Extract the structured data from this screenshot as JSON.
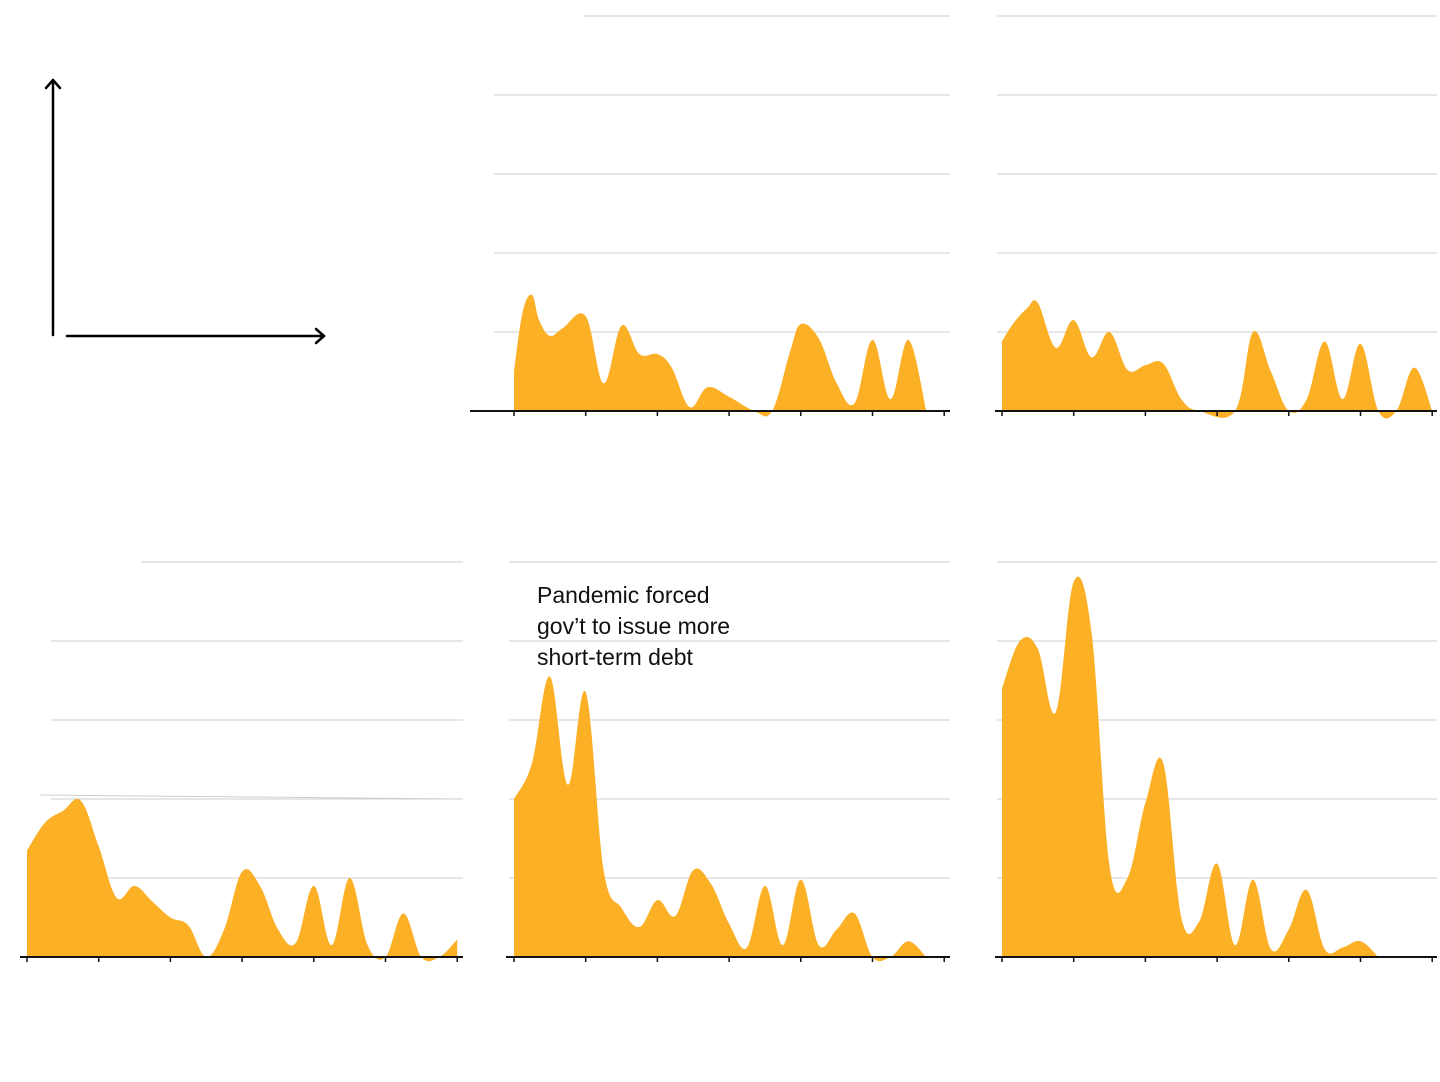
{
  "colors": {
    "area": "#fbb026",
    "grid": "#cfcfcf",
    "axis": "#111111"
  },
  "annotation": {
    "lines": [
      "Pandemic forced",
      "gov’t to issue more",
      "short-term debt"
    ]
  },
  "chart_data": [
    {
      "type": "area",
      "title": "",
      "xlabel": "",
      "ylabel": "",
      "ylim": [
        0,
        5
      ],
      "xlim": [
        0,
        6
      ],
      "grid_values": [
        1,
        2,
        3,
        4,
        5
      ],
      "points": [
        [
          0,
          0.5
        ],
        [
          0.12,
          1.25
        ],
        [
          0.25,
          1.47
        ],
        [
          0.35,
          1.15
        ],
        [
          0.5,
          0.95
        ],
        [
          0.68,
          1.05
        ],
        [
          1.0,
          1.2
        ],
        [
          1.25,
          0.35
        ],
        [
          1.5,
          1.08
        ],
        [
          1.75,
          0.72
        ],
        [
          2.0,
          0.72
        ],
        [
          2.2,
          0.55
        ],
        [
          2.45,
          0.05
        ],
        [
          2.7,
          0.3
        ],
        [
          3.0,
          0.18
        ],
        [
          3.35,
          0.0
        ],
        [
          3.6,
          0.0
        ],
        [
          3.85,
          0.75
        ],
        [
          4.0,
          1.1
        ],
        [
          4.25,
          0.92
        ],
        [
          4.5,
          0.35
        ],
        [
          4.75,
          0.1
        ],
        [
          5.0,
          0.9
        ],
        [
          5.25,
          0.15
        ],
        [
          5.5,
          0.9
        ],
        [
          5.75,
          0.0
        ]
      ]
    },
    {
      "type": "area",
      "title": "",
      "xlabel": "",
      "ylabel": "",
      "ylim": [
        0,
        5
      ],
      "xlim": [
        0,
        6
      ],
      "grid_values": [
        1,
        2,
        3,
        4,
        5
      ],
      "points": [
        [
          0,
          0.88
        ],
        [
          0.15,
          1.1
        ],
        [
          0.35,
          1.3
        ],
        [
          0.5,
          1.37
        ],
        [
          0.75,
          0.8
        ],
        [
          1.0,
          1.15
        ],
        [
          1.25,
          0.68
        ],
        [
          1.5,
          1.0
        ],
        [
          1.75,
          0.52
        ],
        [
          2.0,
          0.58
        ],
        [
          2.25,
          0.6
        ],
        [
          2.5,
          0.15
        ],
        [
          2.75,
          0.0
        ],
        [
          3.25,
          0.0
        ],
        [
          3.5,
          1.0
        ],
        [
          3.75,
          0.5
        ],
        [
          4.0,
          0.0
        ],
        [
          4.25,
          0.15
        ],
        [
          4.5,
          0.88
        ],
        [
          4.75,
          0.15
        ],
        [
          5.0,
          0.85
        ],
        [
          5.25,
          0.0
        ],
        [
          5.5,
          0.0
        ],
        [
          5.75,
          0.55
        ],
        [
          6.0,
          0.0
        ]
      ]
    },
    {
      "type": "area",
      "title": "",
      "xlabel": "",
      "ylabel": "",
      "ylim": [
        0,
        5
      ],
      "xlim": [
        0,
        6
      ],
      "grid_values": [
        1,
        2,
        3,
        4,
        5
      ],
      "reference_line": {
        "y_start": 2.05,
        "y_end": 2.0
      },
      "points": [
        [
          0,
          1.35
        ],
        [
          0.25,
          1.7
        ],
        [
          0.5,
          1.85
        ],
        [
          0.75,
          1.98
        ],
        [
          1.0,
          1.4
        ],
        [
          1.25,
          0.75
        ],
        [
          1.5,
          0.9
        ],
        [
          1.75,
          0.7
        ],
        [
          2.0,
          0.5
        ],
        [
          2.25,
          0.4
        ],
        [
          2.5,
          0.0
        ],
        [
          2.75,
          0.35
        ],
        [
          3.0,
          1.08
        ],
        [
          3.25,
          0.9
        ],
        [
          3.5,
          0.35
        ],
        [
          3.75,
          0.18
        ],
        [
          4.0,
          0.9
        ],
        [
          4.25,
          0.15
        ],
        [
          4.5,
          1.0
        ],
        [
          4.75,
          0.15
        ],
        [
          5.0,
          0.0
        ],
        [
          5.25,
          0.55
        ],
        [
          5.5,
          0.0
        ],
        [
          5.75,
          0.0
        ],
        [
          6.0,
          0.22
        ]
      ]
    },
    {
      "type": "area",
      "title": "",
      "xlabel": "",
      "ylabel": "",
      "ylim": [
        0,
        5
      ],
      "xlim": [
        0,
        6
      ],
      "grid_values": [
        1,
        2,
        3,
        4,
        5
      ],
      "points": [
        [
          0,
          2.0
        ],
        [
          0.25,
          2.45
        ],
        [
          0.5,
          3.55
        ],
        [
          0.75,
          2.18
        ],
        [
          1.0,
          3.35
        ],
        [
          1.25,
          1.1
        ],
        [
          1.5,
          0.62
        ],
        [
          1.75,
          0.38
        ],
        [
          2.0,
          0.72
        ],
        [
          2.25,
          0.52
        ],
        [
          2.5,
          1.1
        ],
        [
          2.75,
          0.92
        ],
        [
          3.0,
          0.42
        ],
        [
          3.25,
          0.12
        ],
        [
          3.5,
          0.9
        ],
        [
          3.75,
          0.15
        ],
        [
          4.0,
          0.98
        ],
        [
          4.25,
          0.15
        ],
        [
          4.5,
          0.35
        ],
        [
          4.75,
          0.55
        ],
        [
          5.0,
          0.0
        ],
        [
          5.25,
          0.0
        ],
        [
          5.5,
          0.2
        ],
        [
          5.75,
          0.0
        ]
      ]
    },
    {
      "type": "area",
      "title": "",
      "xlabel": "",
      "ylabel": "",
      "ylim": [
        0,
        5
      ],
      "xlim": [
        0,
        6
      ],
      "grid_values": [
        1,
        2,
        3,
        4,
        5
      ],
      "points": [
        [
          0,
          3.4
        ],
        [
          0.25,
          4.0
        ],
        [
          0.5,
          3.9
        ],
        [
          0.75,
          3.1
        ],
        [
          1.0,
          4.75
        ],
        [
          1.25,
          4.1
        ],
        [
          1.5,
          1.15
        ],
        [
          1.75,
          1.0
        ],
        [
          2.0,
          1.95
        ],
        [
          2.25,
          2.45
        ],
        [
          2.5,
          0.5
        ],
        [
          2.75,
          0.45
        ],
        [
          3.0,
          1.18
        ],
        [
          3.25,
          0.15
        ],
        [
          3.5,
          0.98
        ],
        [
          3.75,
          0.1
        ],
        [
          4.0,
          0.35
        ],
        [
          4.25,
          0.85
        ],
        [
          4.5,
          0.1
        ],
        [
          4.75,
          0.12
        ],
        [
          5.0,
          0.2
        ],
        [
          5.25,
          0.0
        ]
      ]
    }
  ]
}
